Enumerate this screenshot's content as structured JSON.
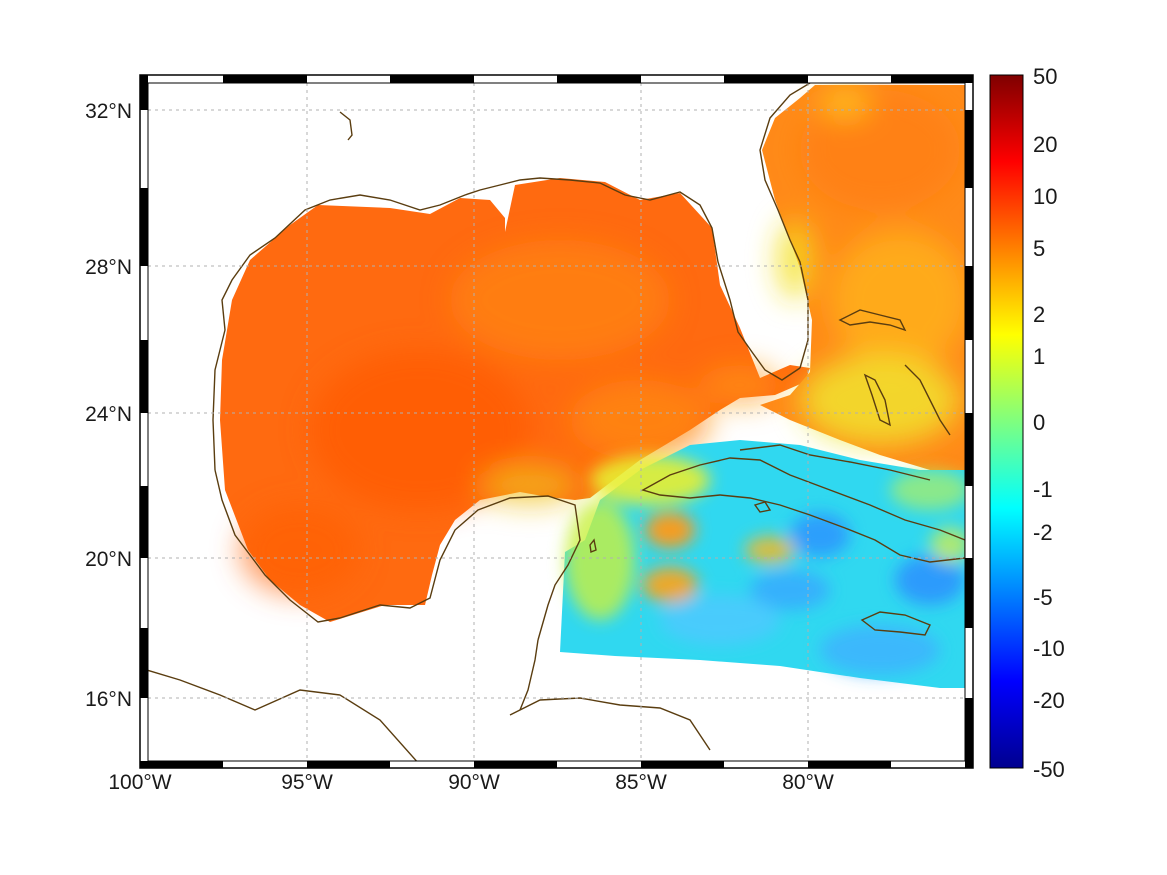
{
  "map": {
    "lon_range": [
      -100,
      -75
    ],
    "lat_range": [
      14.3,
      33.0
    ],
    "lon_ticks": [
      {
        "value": -100,
        "label": "100°W"
      },
      {
        "value": -95,
        "label": "95°W"
      },
      {
        "value": -90,
        "label": "90°W"
      },
      {
        "value": -85,
        "label": "85°W"
      },
      {
        "value": -80,
        "label": "80°W"
      }
    ],
    "lat_ticks": [
      {
        "value": 32,
        "label": "32°N"
      },
      {
        "value": 28,
        "label": "28°N"
      },
      {
        "value": 24,
        "label": "24°N"
      },
      {
        "value": 20,
        "label": "20°N"
      },
      {
        "value": 16,
        "label": "16°N"
      }
    ],
    "grid": true,
    "frame_style": "alternating black/white border",
    "coastline_color": "#5a3d10",
    "no_data_color": "#ffffff"
  },
  "colorbar": {
    "position": "right",
    "labels": [
      "50",
      "20",
      "10",
      "5",
      "2",
      "1",
      "0",
      "-1",
      "-2",
      "-5",
      "-10",
      "-20",
      "-50"
    ],
    "colormap": "jet",
    "scale": "symmetric log"
  },
  "field": {
    "gulf_of_mexico_level": "orange-red (approx. 5 to 10)",
    "caribbean_level": "cyan-blue (approx. -1 to -5)",
    "atlantic_level": "orange (approx. 2 to 5)"
  }
}
